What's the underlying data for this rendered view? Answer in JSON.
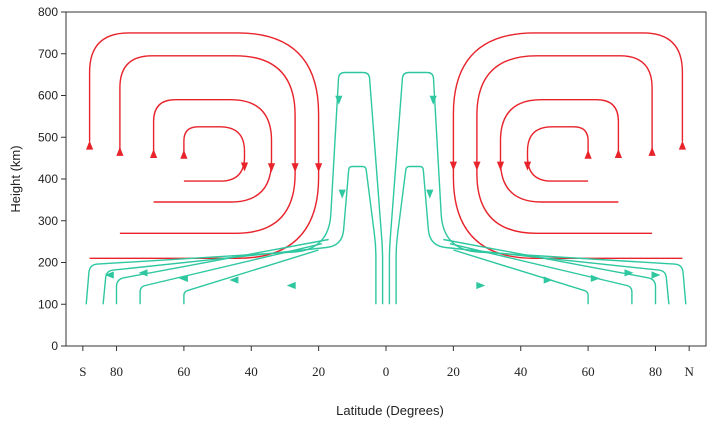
{
  "chart_data": {
    "type": "line",
    "title": "",
    "xlabel": "Latitude (Degrees)",
    "ylabel": "Height (km)",
    "ylim": [
      0,
      800
    ],
    "yticks": [
      0,
      100,
      200,
      300,
      400,
      500,
      600,
      700,
      800
    ],
    "xticks": [
      {
        "pos": 90,
        "label": "S"
      },
      {
        "pos": 80,
        "label": "80"
      },
      {
        "pos": 60,
        "label": "60"
      },
      {
        "pos": 40,
        "label": "40"
      },
      {
        "pos": 20,
        "label": "20"
      },
      {
        "pos": 0,
        "label": "0"
      },
      {
        "pos": -20,
        "label": "20"
      },
      {
        "pos": -40,
        "label": "40"
      },
      {
        "pos": -60,
        "label": "60"
      },
      {
        "pos": -80,
        "label": "80"
      },
      {
        "pos": -90,
        "label": "N"
      }
    ],
    "xlim": [
      95,
      -95
    ],
    "grid": false,
    "colors": {
      "red_cells": "#e8232b",
      "green_cells": "#2ec7a0"
    },
    "series": [
      {
        "group": "red-cell-south",
        "color": "#e8232b",
        "path": [
          [
            88,
            490
          ],
          [
            88,
            750
          ],
          [
            20,
            750
          ],
          [
            20,
            210
          ],
          [
            88,
            210
          ]
        ],
        "corner": 0.36,
        "arrows": [
          {
            "x": 88,
            "y": 480,
            "dir": "up"
          },
          {
            "x": 20,
            "y": 428,
            "dir": "down"
          }
        ]
      },
      {
        "group": "red-cell-south",
        "color": "#e8232b",
        "path": [
          [
            79,
            470
          ],
          [
            79,
            695
          ],
          [
            27,
            695
          ],
          [
            27,
            270
          ],
          [
            79,
            270
          ]
        ],
        "corner": 0.34,
        "arrows": [
          {
            "x": 79,
            "y": 465,
            "dir": "up"
          },
          {
            "x": 27,
            "y": 428,
            "dir": "down"
          }
        ]
      },
      {
        "group": "red-cell-south",
        "color": "#e8232b",
        "path": [
          [
            69,
            460
          ],
          [
            69,
            590
          ],
          [
            34,
            590
          ],
          [
            34,
            345
          ],
          [
            69,
            345
          ]
        ],
        "corner": 0.4,
        "arrows": [
          {
            "x": 69,
            "y": 460,
            "dir": "up"
          },
          {
            "x": 34,
            "y": 428,
            "dir": "down"
          }
        ]
      },
      {
        "group": "red-cell-south",
        "color": "#e8232b",
        "path": [
          [
            60,
            450
          ],
          [
            60,
            525
          ],
          [
            42,
            525
          ],
          [
            42,
            395
          ],
          [
            60,
            395
          ]
        ],
        "corner": 0.45,
        "arrows": [
          {
            "x": 60,
            "y": 458,
            "dir": "up"
          },
          {
            "x": 42,
            "y": 430,
            "dir": "down"
          }
        ]
      },
      {
        "group": "red-cell-north",
        "color": "#e8232b",
        "path": [
          [
            -88,
            490
          ],
          [
            -88,
            750
          ],
          [
            -20,
            750
          ],
          [
            -20,
            210
          ],
          [
            -88,
            210
          ]
        ],
        "corner": 0.36,
        "arrows": [
          {
            "x": -88,
            "y": 480,
            "dir": "up"
          },
          {
            "x": -20,
            "y": 432,
            "dir": "down"
          }
        ]
      },
      {
        "group": "red-cell-north",
        "color": "#e8232b",
        "path": [
          [
            -79,
            470
          ],
          [
            -79,
            695
          ],
          [
            -27,
            695
          ],
          [
            -27,
            270
          ],
          [
            -79,
            270
          ]
        ],
        "corner": 0.34,
        "arrows": [
          {
            "x": -79,
            "y": 465,
            "dir": "up"
          },
          {
            "x": -27,
            "y": 432,
            "dir": "down"
          }
        ]
      },
      {
        "group": "red-cell-north",
        "color": "#e8232b",
        "path": [
          [
            -69,
            460
          ],
          [
            -69,
            590
          ],
          [
            -34,
            590
          ],
          [
            -34,
            345
          ],
          [
            -69,
            345
          ]
        ],
        "corner": 0.4,
        "arrows": [
          {
            "x": -69,
            "y": 460,
            "dir": "up"
          },
          {
            "x": -34,
            "y": 432,
            "dir": "down"
          }
        ]
      },
      {
        "group": "red-cell-north",
        "color": "#e8232b",
        "path": [
          [
            -60,
            450
          ],
          [
            -60,
            525
          ],
          [
            -42,
            525
          ],
          [
            -42,
            395
          ],
          [
            -60,
            395
          ]
        ],
        "corner": 0.45,
        "arrows": [
          {
            "x": -60,
            "y": 458,
            "dir": "up"
          },
          {
            "x": -42,
            "y": 432,
            "dir": "down"
          }
        ]
      },
      {
        "group": "green-cells",
        "color": "#2ec7a0",
        "path": [
          [
            1,
            100
          ],
          [
            1,
            230
          ],
          [
            5,
            655
          ],
          [
            14,
            655
          ],
          [
            17,
            230
          ],
          [
            88,
            195
          ],
          [
            89,
            100
          ]
        ],
        "corner": 0.2,
        "arrows": [
          {
            "x": 14,
            "y": 590,
            "dir": "down"
          },
          {
            "x": 82,
            "y": 170,
            "dir": "left"
          }
        ]
      },
      {
        "group": "green-cells",
        "color": "#2ec7a0",
        "path": [
          [
            3,
            100
          ],
          [
            3,
            240
          ],
          [
            6,
            430
          ],
          [
            11,
            430
          ],
          [
            13,
            240
          ],
          [
            83,
            180
          ],
          [
            84,
            100
          ]
        ],
        "corner": 0.2,
        "arrows": [
          {
            "x": 13,
            "y": 365,
            "dir": "down"
          },
          {
            "x": 72,
            "y": 175,
            "dir": "left"
          }
        ]
      },
      {
        "group": "green-cells",
        "color": "#2ec7a0",
        "path": [
          [
            17,
            255
          ],
          [
            80,
            160
          ],
          [
            80,
            100
          ]
        ],
        "corner": 0.3,
        "arrows": [
          {
            "x": 60,
            "y": 162,
            "dir": "left"
          }
        ]
      },
      {
        "group": "green-cells",
        "color": "#2ec7a0",
        "path": [
          [
            19,
            245
          ],
          [
            73,
            142
          ],
          [
            73,
            100
          ]
        ],
        "corner": 0.3,
        "arrows": [
          {
            "x": 45,
            "y": 158,
            "dir": "left"
          }
        ]
      },
      {
        "group": "green-cells",
        "color": "#2ec7a0",
        "path": [
          [
            20,
            230
          ],
          [
            60,
            130
          ],
          [
            60,
            100
          ]
        ],
        "corner": 0.3,
        "arrows": [
          {
            "x": 28,
            "y": 145,
            "dir": "left"
          }
        ]
      },
      {
        "group": "green-cells",
        "color": "#2ec7a0",
        "path": [
          [
            -1,
            100
          ],
          [
            -1,
            230
          ],
          [
            -5,
            655
          ],
          [
            -14,
            655
          ],
          [
            -17,
            230
          ],
          [
            -88,
            195
          ],
          [
            -89,
            100
          ]
        ],
        "corner": 0.2,
        "arrows": [
          {
            "x": -14,
            "y": 590,
            "dir": "down"
          },
          {
            "x": -80,
            "y": 170,
            "dir": "right"
          }
        ]
      },
      {
        "group": "green-cells",
        "color": "#2ec7a0",
        "path": [
          [
            -3,
            100
          ],
          [
            -3,
            240
          ],
          [
            -6,
            430
          ],
          [
            -11,
            430
          ],
          [
            -13,
            240
          ],
          [
            -83,
            180
          ],
          [
            -84,
            100
          ]
        ],
        "corner": 0.2,
        "arrows": [
          {
            "x": -13,
            "y": 365,
            "dir": "down"
          },
          {
            "x": -72,
            "y": 175,
            "dir": "right"
          }
        ]
      },
      {
        "group": "green-cells",
        "color": "#2ec7a0",
        "path": [
          [
            -17,
            255
          ],
          [
            -80,
            160
          ],
          [
            -80,
            100
          ]
        ],
        "corner": 0.3,
        "arrows": [
          {
            "x": -62,
            "y": 162,
            "dir": "right"
          }
        ]
      },
      {
        "group": "green-cells",
        "color": "#2ec7a0",
        "path": [
          [
            -19,
            245
          ],
          [
            -73,
            142
          ],
          [
            -73,
            100
          ]
        ],
        "corner": 0.3,
        "arrows": [
          {
            "x": -48,
            "y": 158,
            "dir": "right"
          }
        ]
      },
      {
        "group": "green-cells",
        "color": "#2ec7a0",
        "path": [
          [
            -20,
            230
          ],
          [
            -60,
            130
          ],
          [
            -60,
            100
          ]
        ],
        "corner": 0.3,
        "arrows": [
          {
            "x": -28,
            "y": 145,
            "dir": "right"
          }
        ]
      }
    ]
  }
}
